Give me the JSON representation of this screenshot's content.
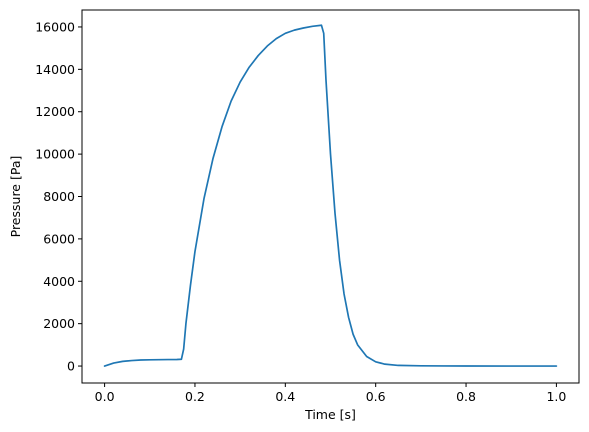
{
  "chart_data": {
    "type": "line",
    "title": "",
    "xlabel": "Time [s]",
    "ylabel": "Pressure [Pa]",
    "xlim": [
      -0.05,
      1.05
    ],
    "ylim": [
      -800,
      16800
    ],
    "xticks": [
      0.0,
      0.2,
      0.4,
      0.6,
      0.8,
      1.0
    ],
    "xtick_labels": [
      "0.0",
      "0.2",
      "0.4",
      "0.6",
      "0.8",
      "1.0"
    ],
    "yticks": [
      0,
      2000,
      4000,
      6000,
      8000,
      10000,
      12000,
      14000,
      16000
    ],
    "ytick_labels": [
      "0",
      "2000",
      "4000",
      "6000",
      "8000",
      "10000",
      "12000",
      "14000",
      "16000"
    ],
    "grid": false,
    "series": [
      {
        "color": "#1f77b4",
        "x": [
          0.0,
          0.02,
          0.04,
          0.06,
          0.08,
          0.1,
          0.12,
          0.14,
          0.16,
          0.17,
          0.175,
          0.18,
          0.19,
          0.2,
          0.22,
          0.24,
          0.26,
          0.28,
          0.3,
          0.32,
          0.34,
          0.36,
          0.38,
          0.4,
          0.42,
          0.44,
          0.46,
          0.48,
          0.485,
          0.49,
          0.5,
          0.51,
          0.52,
          0.53,
          0.54,
          0.55,
          0.56,
          0.58,
          0.6,
          0.62,
          0.65,
          0.7,
          0.75,
          0.8,
          0.9,
          1.0
        ],
        "y": [
          0,
          140,
          220,
          260,
          285,
          295,
          300,
          305,
          310,
          320,
          800,
          2000,
          3800,
          5400,
          7900,
          9800,
          11300,
          12500,
          13400,
          14100,
          14650,
          15100,
          15450,
          15700,
          15850,
          15950,
          16030,
          16080,
          15700,
          13500,
          10000,
          7200,
          5000,
          3400,
          2300,
          1500,
          1000,
          450,
          200,
          90,
          30,
          10,
          5,
          2,
          0,
          0
        ]
      }
    ]
  }
}
